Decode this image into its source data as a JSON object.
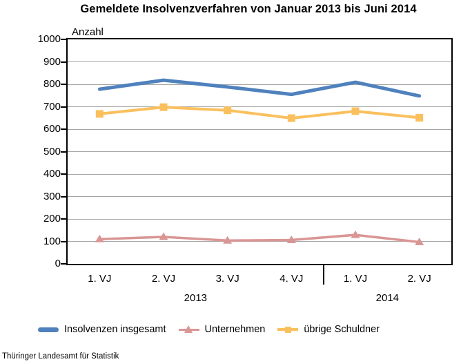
{
  "chart_data": {
    "type": "line",
    "title": "Gemeldete Insolvenzverfahren von Januar 2013 bis Juni 2014",
    "ylabel": "Anzahl",
    "ylim": [
      0,
      1000
    ],
    "yticks": [
      0,
      100,
      200,
      300,
      400,
      500,
      600,
      700,
      800,
      900,
      1000
    ],
    "grid": true,
    "legend_position": "bottom",
    "categories": [
      "1. VJ",
      "2. VJ",
      "3. VJ",
      "4. VJ",
      "1. VJ",
      "2. VJ"
    ],
    "year_groups": [
      {
        "label": "2013",
        "span": 4
      },
      {
        "label": "2014",
        "span": 2
      }
    ],
    "series": [
      {
        "name": "Insolvenzen insgesamt",
        "color": "#4f81bd",
        "marker": "none",
        "values": [
          778,
          818,
          788,
          755,
          809,
          748
        ]
      },
      {
        "name": "Unternehmen",
        "color": "#d99694",
        "marker": "triangle",
        "values": [
          110,
          120,
          104,
          106,
          129,
          97
        ]
      },
      {
        "name": "übrige Schuldner",
        "color": "#fac05e",
        "marker": "square",
        "values": [
          668,
          698,
          684,
          649,
          680,
          651
        ]
      }
    ],
    "grid_color": "#a6a6a6"
  },
  "footer": {
    "source": "Thüringer Landesamt für Statistik"
  }
}
